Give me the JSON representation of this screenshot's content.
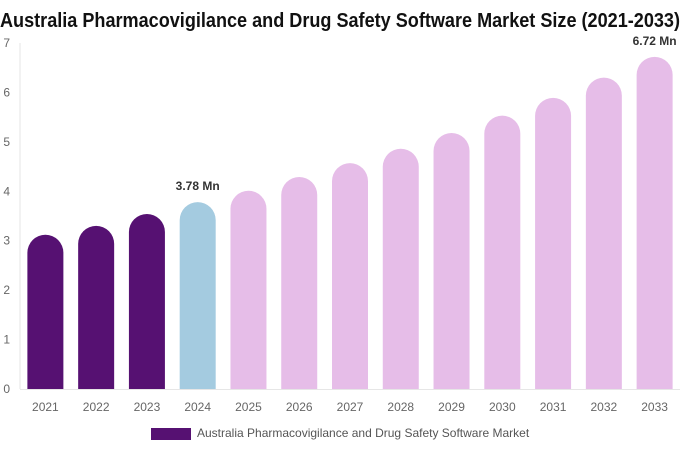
{
  "chart_data": {
    "type": "bar",
    "title": "Australia Pharmacovigilance and Drug Safety Software Market Size (2021-2033)",
    "xlabel": "",
    "ylabel": "",
    "ylim": [
      0,
      7
    ],
    "yticks": [
      "0",
      "1",
      "2",
      "3",
      "4",
      "5",
      "6",
      "7"
    ],
    "grid": false,
    "legend_position": "bottom",
    "categories": [
      "2021",
      "2022",
      "2023",
      "2024",
      "2025",
      "2026",
      "2027",
      "2028",
      "2029",
      "2030",
      "2031",
      "2032",
      "2033"
    ],
    "series": [
      {
        "name": "Australia Pharmacovigilance and Drug Safety Software Market",
        "values": [
          3.12,
          3.3,
          3.54,
          3.78,
          4.01,
          4.29,
          4.57,
          4.86,
          5.18,
          5.53,
          5.89,
          6.3,
          6.72
        ],
        "color": "#561172"
      }
    ],
    "bar_colors": {
      "historical": "#561172",
      "base_year": "#a4cbe0",
      "forecast": "#e6bde8"
    },
    "bar_color_group": [
      "historical",
      "historical",
      "historical",
      "base_year",
      "forecast",
      "forecast",
      "forecast",
      "forecast",
      "forecast",
      "forecast",
      "forecast",
      "forecast",
      "forecast"
    ],
    "data_labels": [
      {
        "category": "2024",
        "text": "3.78 Mn"
      },
      {
        "category": "2033",
        "text": "6.72 Mn"
      }
    ]
  }
}
